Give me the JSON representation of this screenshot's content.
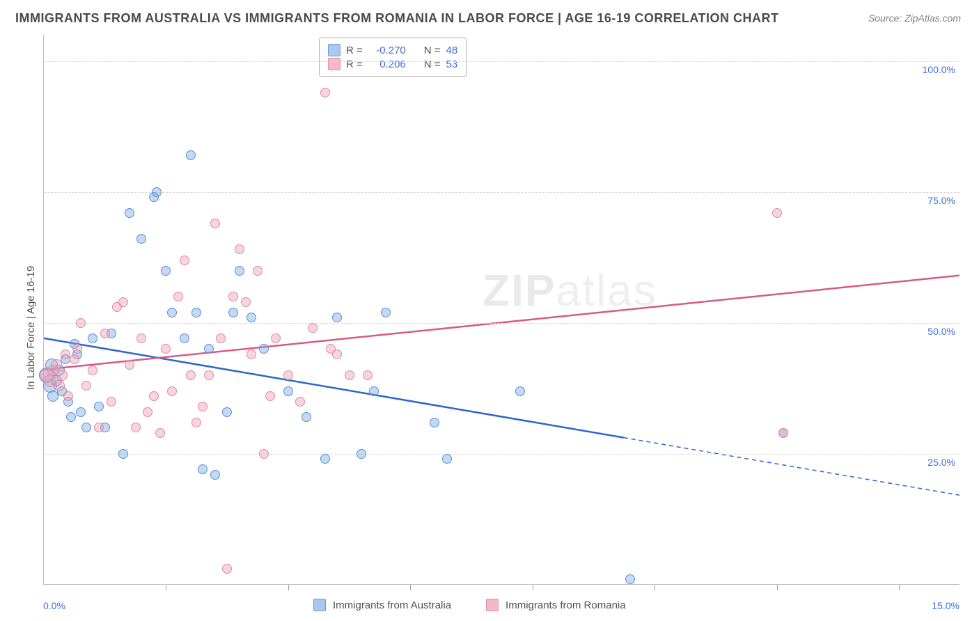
{
  "title": "IMMIGRANTS FROM AUSTRALIA VS IMMIGRANTS FROM ROMANIA IN LABOR FORCE | AGE 16-19 CORRELATION CHART",
  "source": "Source: ZipAtlas.com",
  "y_axis_title": "In Labor Force | Age 16-19",
  "watermark": {
    "bold": "ZIP",
    "light": "atlas"
  },
  "legend_top": {
    "rows": [
      {
        "swatch_fill": "#a9c8f0",
        "swatch_border": "#6a9ae0",
        "r_label": "R =",
        "r_value": "-0.270",
        "n_label": "N =",
        "n_value": "48"
      },
      {
        "swatch_fill": "#f4b9c7",
        "swatch_border": "#e88aa0",
        "r_label": "R =",
        "r_value": "0.206",
        "n_label": "N =",
        "n_value": "53"
      }
    ],
    "label_color": "#505050",
    "value_color": "#3a6fd8"
  },
  "legend_bottom": {
    "items": [
      {
        "swatch_fill": "#a9c8f0",
        "swatch_border": "#6a9ae0",
        "label": "Immigrants from Australia"
      },
      {
        "swatch_fill": "#f4b9c7",
        "swatch_border": "#e88aa0",
        "label": "Immigrants from Romania"
      }
    ]
  },
  "chart": {
    "type": "scatter",
    "xlim": [
      0,
      15
    ],
    "ylim": [
      0,
      105
    ],
    "y_ticks": [
      25,
      50,
      75,
      100
    ],
    "y_tick_labels": [
      "25.0%",
      "50.0%",
      "75.0%",
      "100.0%"
    ],
    "x_ticks": [
      2,
      4,
      6,
      8,
      10,
      12,
      14
    ],
    "x_min_label": "0.0%",
    "x_max_label": "15.0%",
    "background": "#ffffff",
    "grid_color": "#d8d8d8",
    "axis_label_color": "#3a6fd8",
    "series": [
      {
        "name": "Immigrants from Australia",
        "color_fill": "rgba(122,170,230,0.45)",
        "color_stroke": "#5a8fd6",
        "trend_color": "#2a66c8",
        "trend": {
          "x1": 0,
          "y1": 47,
          "x2": 9.5,
          "y2": 28,
          "x2_ext": 15,
          "y2_ext": 17
        },
        "points": [
          {
            "x": 0.05,
            "y": 40,
            "r": 11
          },
          {
            "x": 0.1,
            "y": 38,
            "r": 10
          },
          {
            "x": 0.12,
            "y": 42,
            "r": 9
          },
          {
            "x": 0.15,
            "y": 36,
            "r": 8
          },
          {
            "x": 0.2,
            "y": 39,
            "r": 8
          },
          {
            "x": 0.25,
            "y": 41,
            "r": 8
          },
          {
            "x": 0.3,
            "y": 37,
            "r": 7
          },
          {
            "x": 0.35,
            "y": 43,
            "r": 7
          },
          {
            "x": 0.4,
            "y": 35,
            "r": 7
          },
          {
            "x": 0.45,
            "y": 32,
            "r": 7
          },
          {
            "x": 0.5,
            "y": 46,
            "r": 7
          },
          {
            "x": 0.55,
            "y": 44,
            "r": 7
          },
          {
            "x": 0.6,
            "y": 33,
            "r": 7
          },
          {
            "x": 0.7,
            "y": 30,
            "r": 7
          },
          {
            "x": 0.8,
            "y": 47,
            "r": 7
          },
          {
            "x": 0.9,
            "y": 34,
            "r": 7
          },
          {
            "x": 1.0,
            "y": 30,
            "r": 7
          },
          {
            "x": 1.1,
            "y": 48,
            "r": 7
          },
          {
            "x": 1.3,
            "y": 25,
            "r": 7
          },
          {
            "x": 1.4,
            "y": 71,
            "r": 7
          },
          {
            "x": 1.6,
            "y": 66,
            "r": 7
          },
          {
            "x": 1.8,
            "y": 74,
            "r": 7
          },
          {
            "x": 1.85,
            "y": 75,
            "r": 7
          },
          {
            "x": 2.0,
            "y": 60,
            "r": 7
          },
          {
            "x": 2.1,
            "y": 52,
            "r": 7
          },
          {
            "x": 2.3,
            "y": 47,
            "r": 7
          },
          {
            "x": 2.4,
            "y": 82,
            "r": 7
          },
          {
            "x": 2.5,
            "y": 52,
            "r": 7
          },
          {
            "x": 2.6,
            "y": 22,
            "r": 7
          },
          {
            "x": 2.7,
            "y": 45,
            "r": 7
          },
          {
            "x": 2.8,
            "y": 21,
            "r": 7
          },
          {
            "x": 3.0,
            "y": 33,
            "r": 7
          },
          {
            "x": 3.1,
            "y": 52,
            "r": 7
          },
          {
            "x": 3.2,
            "y": 60,
            "r": 7
          },
          {
            "x": 3.4,
            "y": 51,
            "r": 7
          },
          {
            "x": 3.6,
            "y": 45,
            "r": 7
          },
          {
            "x": 4.0,
            "y": 37,
            "r": 7
          },
          {
            "x": 4.3,
            "y": 32,
            "r": 7
          },
          {
            "x": 4.6,
            "y": 24,
            "r": 7
          },
          {
            "x": 4.8,
            "y": 51,
            "r": 7
          },
          {
            "x": 5.2,
            "y": 25,
            "r": 7
          },
          {
            "x": 5.4,
            "y": 37,
            "r": 7
          },
          {
            "x": 5.6,
            "y": 52,
            "r": 7
          },
          {
            "x": 6.4,
            "y": 31,
            "r": 7
          },
          {
            "x": 6.6,
            "y": 24,
            "r": 7
          },
          {
            "x": 7.8,
            "y": 37,
            "r": 7
          },
          {
            "x": 9.6,
            "y": 1,
            "r": 7
          },
          {
            "x": 12.1,
            "y": 29,
            "r": 7
          }
        ]
      },
      {
        "name": "Immigrants from Romania",
        "color_fill": "rgba(240,160,180,0.45)",
        "color_stroke": "#e08aa0",
        "trend_color": "#d85a80",
        "trend": {
          "x1": 0,
          "y1": 41,
          "x2": 15,
          "y2": 59,
          "x2_ext": 15,
          "y2_ext": 59
        },
        "points": [
          {
            "x": 0.05,
            "y": 40,
            "r": 10
          },
          {
            "x": 0.1,
            "y": 39,
            "r": 9
          },
          {
            "x": 0.15,
            "y": 41,
            "r": 8
          },
          {
            "x": 0.2,
            "y": 42,
            "r": 8
          },
          {
            "x": 0.25,
            "y": 38,
            "r": 8
          },
          {
            "x": 0.3,
            "y": 40,
            "r": 8
          },
          {
            "x": 0.35,
            "y": 44,
            "r": 7
          },
          {
            "x": 0.4,
            "y": 36,
            "r": 7
          },
          {
            "x": 0.5,
            "y": 43,
            "r": 7
          },
          {
            "x": 0.55,
            "y": 45,
            "r": 7
          },
          {
            "x": 0.6,
            "y": 50,
            "r": 7
          },
          {
            "x": 0.7,
            "y": 38,
            "r": 7
          },
          {
            "x": 0.8,
            "y": 41,
            "r": 7
          },
          {
            "x": 0.9,
            "y": 30,
            "r": 7
          },
          {
            "x": 1.0,
            "y": 48,
            "r": 7
          },
          {
            "x": 1.1,
            "y": 35,
            "r": 7
          },
          {
            "x": 1.2,
            "y": 53,
            "r": 7
          },
          {
            "x": 1.3,
            "y": 54,
            "r": 7
          },
          {
            "x": 1.4,
            "y": 42,
            "r": 7
          },
          {
            "x": 1.5,
            "y": 30,
            "r": 7
          },
          {
            "x": 1.6,
            "y": 47,
            "r": 7
          },
          {
            "x": 1.7,
            "y": 33,
            "r": 7
          },
          {
            "x": 1.8,
            "y": 36,
            "r": 7
          },
          {
            "x": 1.9,
            "y": 29,
            "r": 7
          },
          {
            "x": 2.0,
            "y": 45,
            "r": 7
          },
          {
            "x": 2.1,
            "y": 37,
            "r": 7
          },
          {
            "x": 2.2,
            "y": 55,
            "r": 7
          },
          {
            "x": 2.3,
            "y": 62,
            "r": 7
          },
          {
            "x": 2.4,
            "y": 40,
            "r": 7
          },
          {
            "x": 2.5,
            "y": 31,
            "r": 7
          },
          {
            "x": 2.6,
            "y": 34,
            "r": 7
          },
          {
            "x": 2.7,
            "y": 40,
            "r": 7
          },
          {
            "x": 2.8,
            "y": 69,
            "r": 7
          },
          {
            "x": 2.9,
            "y": 47,
            "r": 7
          },
          {
            "x": 3.0,
            "y": 3,
            "r": 7
          },
          {
            "x": 3.1,
            "y": 55,
            "r": 7
          },
          {
            "x": 3.2,
            "y": 64,
            "r": 7
          },
          {
            "x": 3.3,
            "y": 54,
            "r": 7
          },
          {
            "x": 3.4,
            "y": 44,
            "r": 7
          },
          {
            "x": 3.5,
            "y": 60,
            "r": 7
          },
          {
            "x": 3.6,
            "y": 25,
            "r": 7
          },
          {
            "x": 3.7,
            "y": 36,
            "r": 7
          },
          {
            "x": 3.8,
            "y": 47,
            "r": 7
          },
          {
            "x": 4.0,
            "y": 40,
            "r": 7
          },
          {
            "x": 4.2,
            "y": 35,
            "r": 7
          },
          {
            "x": 4.4,
            "y": 49,
            "r": 7
          },
          {
            "x": 4.6,
            "y": 94,
            "r": 7
          },
          {
            "x": 4.7,
            "y": 45,
            "r": 7
          },
          {
            "x": 4.8,
            "y": 44,
            "r": 7
          },
          {
            "x": 5.0,
            "y": 40,
            "r": 7
          },
          {
            "x": 5.3,
            "y": 40,
            "r": 7
          },
          {
            "x": 12.0,
            "y": 71,
            "r": 7
          },
          {
            "x": 12.1,
            "y": 29,
            "r": 7
          }
        ]
      }
    ]
  }
}
